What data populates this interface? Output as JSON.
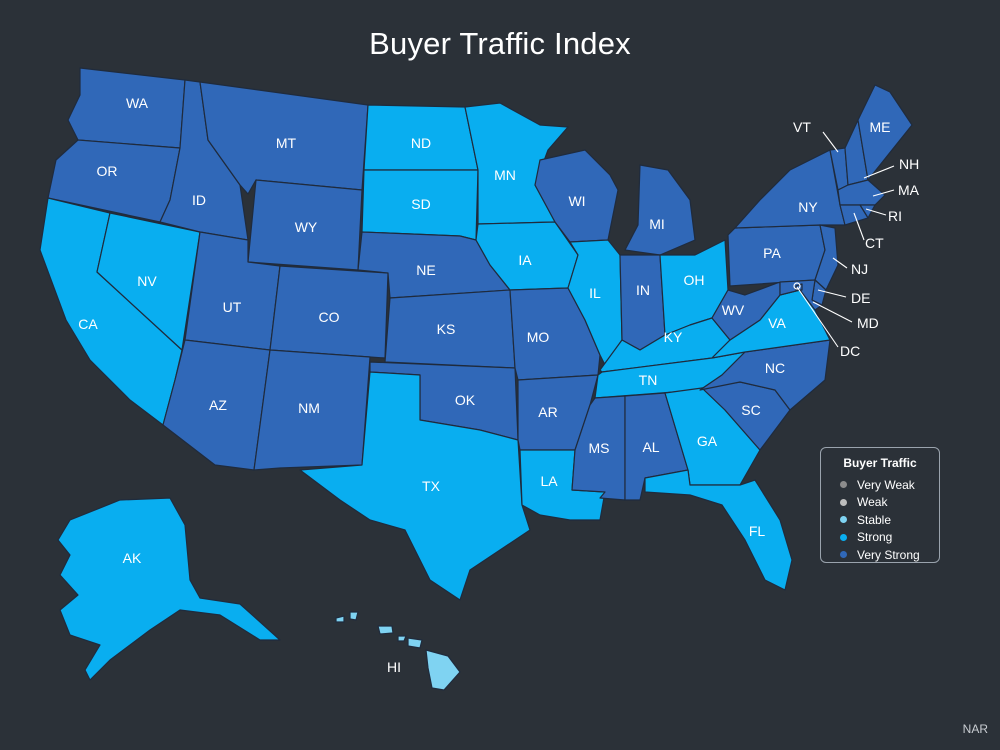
{
  "title": "Buyer Traffic Index",
  "source": "NAR",
  "legend": {
    "title": "Buyer Traffic",
    "items": [
      {
        "label": "Very Weak",
        "color": "#8c8c8c"
      },
      {
        "label": "Weak",
        "color": "#bdbdbd"
      },
      {
        "label": "Stable",
        "color": "#7fd3f2"
      },
      {
        "label": "Strong",
        "color": "#09aef0"
      },
      {
        "label": "Very Strong",
        "color": "#3068b8"
      }
    ]
  },
  "states": {
    "WA": "Very Strong",
    "OR": "Very Strong",
    "CA": "Strong",
    "NV": "Strong",
    "ID": "Very Strong",
    "MT": "Very Strong",
    "WY": "Very Strong",
    "UT": "Very Strong",
    "AZ": "Very Strong",
    "CO": "Very Strong",
    "NM": "Very Strong",
    "ND": "Strong",
    "SD": "Strong",
    "NE": "Very Strong",
    "KS": "Very Strong",
    "OK": "Very Strong",
    "TX": "Strong",
    "MN": "Strong",
    "IA": "Strong",
    "MO": "Very Strong",
    "AR": "Very Strong",
    "LA": "Strong",
    "WI": "Very Strong",
    "IL": "Strong",
    "MI": "Very Strong",
    "IN": "Very Strong",
    "OH": "Strong",
    "KY": "Strong",
    "TN": "Strong",
    "MS": "Very Strong",
    "AL": "Very Strong",
    "GA": "Strong",
    "FL": "Strong",
    "SC": "Very Strong",
    "NC": "Very Strong",
    "VA": "Strong",
    "WV": "Very Strong",
    "PA": "Very Strong",
    "NY": "Very Strong",
    "VT": "Very Strong",
    "NH": "Very Strong",
    "ME": "Very Strong",
    "MA": "Very Strong",
    "RI": "Very Strong",
    "CT": "Very Strong",
    "NJ": "Very Strong",
    "DE": "Very Strong",
    "MD": "Very Strong",
    "DC": "Very Strong",
    "AK": "Strong",
    "HI": "Stable"
  }
}
